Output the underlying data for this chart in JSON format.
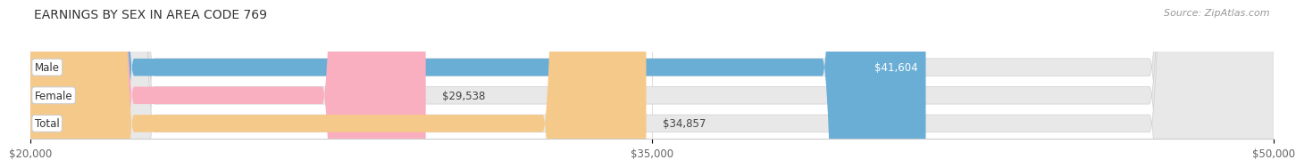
{
  "title": "EARNINGS BY SEX IN AREA CODE 769",
  "source": "Source: ZipAtlas.com",
  "categories": [
    "Male",
    "Female",
    "Total"
  ],
  "values": [
    41604,
    29538,
    34857
  ],
  "bar_colors": [
    "#6aaed6",
    "#f9afc0",
    "#f5c98a"
  ],
  "bar_bg_color": "#e8e8e8",
  "label_values": [
    "$41,604",
    "$29,538",
    "$34,857"
  ],
  "xmin": 20000,
  "xmax": 50000,
  "xticks": [
    20000,
    35000,
    50000
  ],
  "xtick_labels": [
    "$20,000",
    "$35,000",
    "$50,000"
  ],
  "background_color": "#ffffff",
  "title_fontsize": 10,
  "source_fontsize": 8,
  "bar_height": 0.62
}
